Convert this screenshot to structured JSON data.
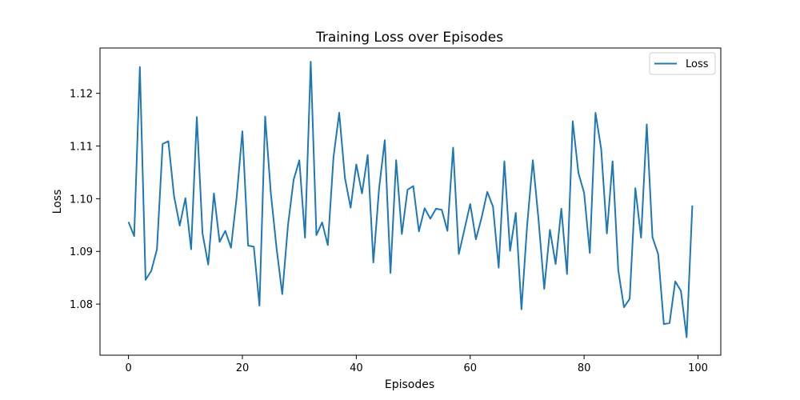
{
  "chart_data": {
    "type": "line",
    "title": "Training Loss over Episodes",
    "xlabel": "Episodes",
    "ylabel": "Loss",
    "xlim": [
      -5,
      104
    ],
    "ylim": [
      1.0703,
      1.1286
    ],
    "xticks": [
      0,
      20,
      40,
      60,
      80,
      100
    ],
    "xtick_labels": [
      "0",
      "20",
      "40",
      "60",
      "80",
      "100"
    ],
    "yticks": [
      1.08,
      1.09,
      1.1,
      1.11,
      1.12
    ],
    "ytick_labels": [
      "1.08",
      "1.09",
      "1.10",
      "1.11",
      "1.12"
    ],
    "grid": false,
    "legend": {
      "position": "top-right",
      "entries": [
        "Loss"
      ]
    },
    "series": [
      {
        "name": "Loss",
        "color": "#1f77b4",
        "x": [
          0,
          1,
          2,
          3,
          4,
          5,
          6,
          7,
          8,
          9,
          10,
          11,
          12,
          13,
          14,
          15,
          16,
          17,
          18,
          19,
          20,
          21,
          22,
          23,
          24,
          25,
          26,
          27,
          28,
          29,
          30,
          31,
          32,
          33,
          34,
          35,
          36,
          37,
          38,
          39,
          40,
          41,
          42,
          43,
          44,
          45,
          46,
          47,
          48,
          49,
          50,
          51,
          52,
          53,
          54,
          55,
          56,
          57,
          58,
          59,
          60,
          61,
          62,
          63,
          64,
          65,
          66,
          67,
          68,
          69,
          70,
          71,
          72,
          73,
          74,
          75,
          76,
          77,
          78,
          79,
          80,
          81,
          82,
          83,
          84,
          85,
          86,
          87,
          88,
          89,
          90,
          91,
          92,
          93,
          94,
          95,
          96,
          97,
          98,
          99
        ],
        "values": [
          1.0956,
          1.0929,
          1.125,
          1.0846,
          1.0863,
          1.0904,
          1.1104,
          1.1109,
          1.1005,
          1.0949,
          1.1001,
          1.0904,
          1.1155,
          1.0934,
          1.0875,
          1.101,
          1.0918,
          1.0939,
          1.0907,
          1.1003,
          1.1128,
          1.0911,
          1.0909,
          1.0797,
          1.1156,
          1.101,
          1.0906,
          1.0819,
          1.0949,
          1.1036,
          1.1073,
          1.0926,
          1.126,
          1.0931,
          1.0955,
          1.0912,
          1.1079,
          1.1163,
          1.104,
          1.0983,
          1.1065,
          1.101,
          1.1083,
          1.0879,
          1.1019,
          1.1111,
          1.0859,
          1.1073,
          1.0933,
          1.1017,
          1.1024,
          1.0938,
          1.0982,
          1.0962,
          1.0981,
          1.0979,
          1.0939,
          1.1097,
          1.0895,
          1.0942,
          1.099,
          1.0923,
          1.0964,
          1.1013,
          1.0985,
          1.0869,
          1.1071,
          1.0901,
          1.0973,
          1.079,
          1.095,
          1.1073,
          1.096,
          1.0829,
          1.0941,
          1.0876,
          1.0981,
          1.0857,
          1.1147,
          1.1049,
          1.1011,
          1.0897,
          1.1163,
          1.1094,
          1.0934,
          1.1071,
          1.0864,
          1.0794,
          1.081,
          1.102,
          1.0926,
          1.1141,
          1.0927,
          1.0895,
          1.0762,
          1.0764,
          1.0843,
          1.0825,
          1.0737,
          1.0987
        ]
      }
    ]
  }
}
